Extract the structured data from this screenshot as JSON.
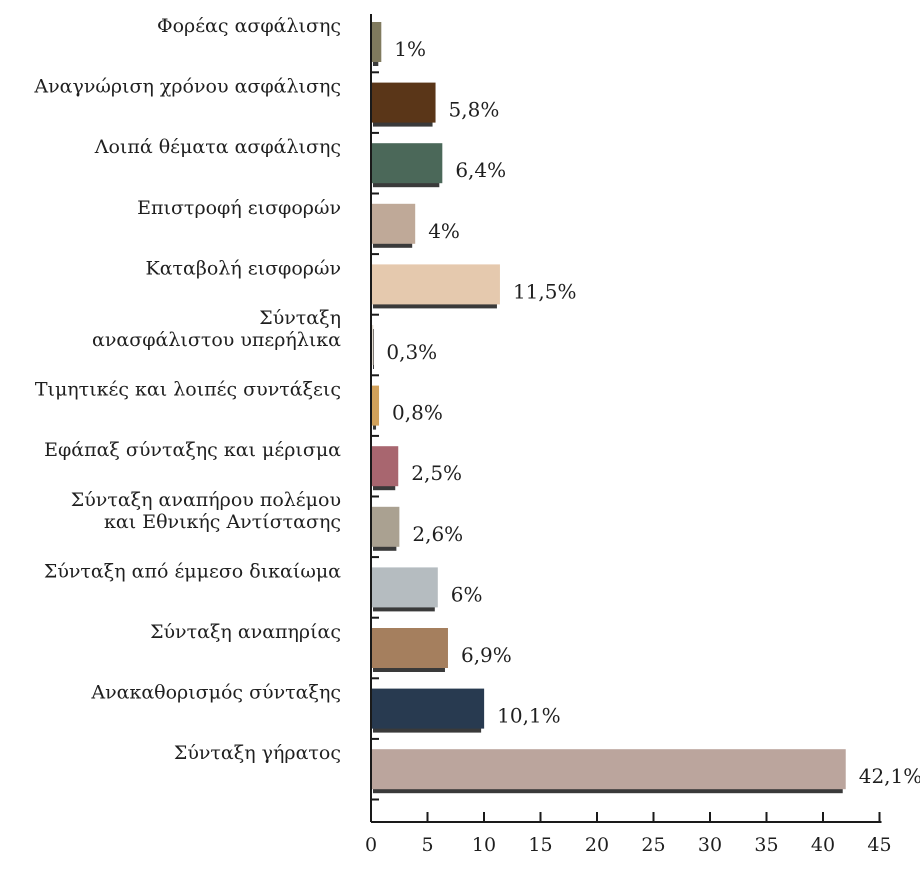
{
  "chart_data": {
    "type": "bar",
    "orientation": "horizontal",
    "title": "",
    "xlabel": "",
    "ylabel": "",
    "xlim": [
      0,
      45
    ],
    "x_ticks": [
      0,
      5,
      10,
      15,
      20,
      25,
      30,
      35,
      40,
      45
    ],
    "grid": false,
    "categories": [
      [
        "Φορέας ασφάλισης"
      ],
      [
        "Αναγνώριση χρόνου ασφάλισης"
      ],
      [
        "Λοιπά θέματα ασφάλισης"
      ],
      [
        "Επιστροφή εισφορών"
      ],
      [
        "Καταβολή εισφορών"
      ],
      [
        "Σύνταξη",
        "ανασφάλιστου υπερήλικα"
      ],
      [
        "Τιμητικές και λοιπές συντάξεις"
      ],
      [
        "Εφάπαξ σύνταξης και μέρισμα"
      ],
      [
        "Σύνταξη αναπήρου πολέμου",
        "και Εθνικής Αντίστασης"
      ],
      [
        "Σύνταξη από έμμεσο δικαίωμα"
      ],
      [
        "Σύνταξη αναπηρίας"
      ],
      [
        "Ανακαθορισμός σύνταξης"
      ],
      [
        "Σύνταξη γήρατος"
      ]
    ],
    "values": [
      1,
      5.8,
      6.4,
      4,
      11.5,
      0.3,
      0.8,
      2.5,
      2.6,
      6,
      6.9,
      10.1,
      42.1
    ],
    "value_labels": [
      "1%",
      "5,8%",
      "6,4%",
      "4%",
      "11,5%",
      "0,3%",
      "0,8%",
      "2,5%",
      "2,6%",
      "6%",
      "6,9%",
      "10,1%",
      "42,1%"
    ],
    "colors": [
      "#807a5e",
      "#5a3618",
      "#4b6859",
      "#bfa998",
      "#e5c9ae",
      "#e7dfd4",
      "#d2a15a",
      "#a8666f",
      "#aaa191",
      "#b5bcc0",
      "#a57f5e",
      "#283a50",
      "#bba59d"
    ]
  }
}
